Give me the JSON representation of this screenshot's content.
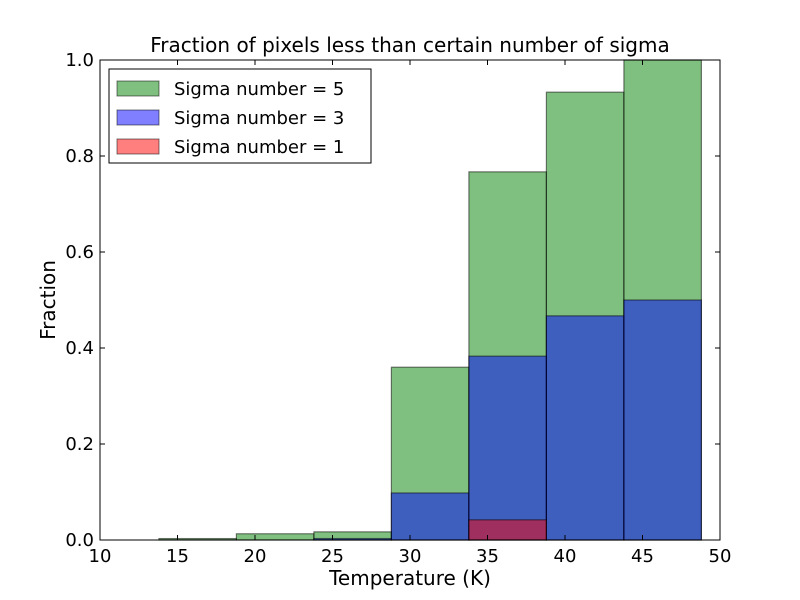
{
  "chart_data": {
    "type": "bar",
    "title": "Fraction of pixels less than certain number of sigma",
    "xlabel": "Temperature (K)",
    "ylabel": "Fraction",
    "xlim": [
      10,
      50
    ],
    "ylim": [
      0,
      1.0
    ],
    "xticks": [
      10,
      15,
      20,
      25,
      30,
      35,
      40,
      45,
      50
    ],
    "yticks": [
      0.0,
      0.2,
      0.4,
      0.6,
      0.8,
      1.0
    ],
    "xtick_labels": [
      "10",
      "15",
      "20",
      "25",
      "30",
      "35",
      "40",
      "45",
      "50"
    ],
    "ytick_labels": [
      "0.0",
      "0.2",
      "0.4",
      "0.6",
      "0.8",
      "1.0"
    ],
    "bin_edges": [
      13.8,
      18.8,
      23.8,
      28.8,
      33.8,
      38.8,
      43.8,
      48.8
    ],
    "series": [
      {
        "name": "Sigma number = 5",
        "color": "#008000",
        "values": [
          0.003,
          0.013,
          0.017,
          0.36,
          0.767,
          0.933,
          1.0
        ]
      },
      {
        "name": "Sigma number = 3",
        "color": "#0000ff",
        "values": [
          0.0,
          0.0,
          0.003,
          0.098,
          0.383,
          0.467,
          0.5
        ]
      },
      {
        "name": "Sigma number = 1",
        "color": "#ff0000",
        "values": [
          0.0,
          0.0,
          0.0,
          0.0,
          0.042,
          0.0,
          0.0
        ]
      }
    ],
    "legend_position": "top-left",
    "grid": false
  }
}
